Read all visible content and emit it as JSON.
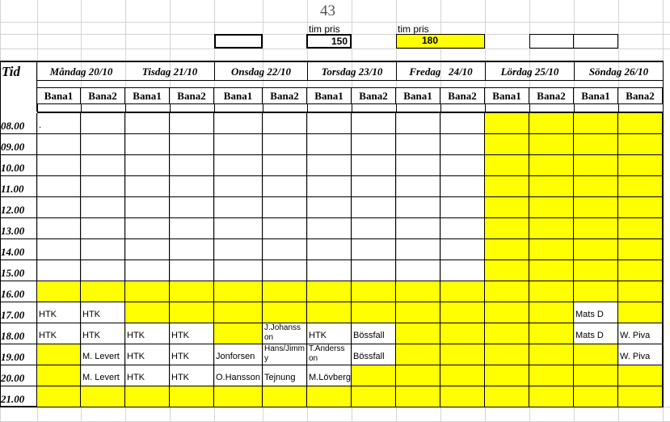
{
  "week_number": "43",
  "price_boxes": [
    {
      "label": "",
      "value": ""
    },
    {
      "label": "tim pris",
      "value": "150"
    },
    {
      "label": "tim pris",
      "value": "180"
    }
  ],
  "header": {
    "time_label": "Tid",
    "days": [
      "Måndag 20/10",
      "Tisdag 21/10",
      "Onsdag 22/10",
      "Torsdag 23/10",
      "Fredag   24/10",
      "Lördag 25/10",
      "Söndag 26/10"
    ],
    "courts": [
      "Bana1",
      "Bana2",
      "Bana1",
      "Bana2",
      "Bana1",
      "Bana2",
      "Bana1",
      "Bana2",
      "Bana1",
      "Bana2",
      "Bana1",
      "Bana2",
      "Bana1",
      "Bana2"
    ]
  },
  "colors": {
    "unavailable": "#ffff00",
    "free": "#ffffff"
  },
  "schedule": [
    {
      "hour": "08.00",
      "cells": [
        ".",
        "",
        "",
        "",
        "",
        "",
        "",
        "",
        "",
        "",
        "#",
        "#",
        "#",
        "#"
      ]
    },
    {
      "hour": "09.00",
      "cells": [
        "",
        "",
        "",
        "",
        "",
        "",
        "",
        "",
        "",
        "",
        "#",
        "#",
        "#",
        "#"
      ]
    },
    {
      "hour": "10.00",
      "cells": [
        "",
        "",
        "",
        "",
        "",
        "",
        "",
        "",
        "",
        "",
        "#",
        "#",
        "#",
        "#"
      ]
    },
    {
      "hour": "11.00",
      "cells": [
        "",
        "",
        "",
        "",
        "",
        "",
        "",
        "",
        "",
        "",
        "#",
        "#",
        "#",
        "#"
      ]
    },
    {
      "hour": "12.00",
      "cells": [
        "",
        "",
        "",
        "",
        "",
        "",
        "",
        "",
        "",
        "",
        "#",
        "#",
        "#",
        "#"
      ]
    },
    {
      "hour": "13.00",
      "cells": [
        "",
        "",
        "",
        "",
        "",
        "",
        "",
        "",
        "",
        "",
        "#",
        "#",
        "#",
        "#"
      ]
    },
    {
      "hour": "14.00",
      "cells": [
        "",
        "",
        "",
        "",
        "",
        "",
        "",
        "",
        "",
        "",
        "#",
        "#",
        "#",
        "#"
      ]
    },
    {
      "hour": "15.00",
      "cells": [
        "",
        "",
        "",
        "",
        "",
        "",
        "",
        "",
        "",
        "",
        "#",
        "#",
        "#",
        "#"
      ]
    },
    {
      "hour": "16.00",
      "cells": [
        "#",
        "#",
        "#",
        "#",
        "#",
        "#",
        "#",
        "#",
        "#",
        "#",
        "#",
        "#",
        "#",
        "#"
      ]
    },
    {
      "hour": "17.00",
      "cells": [
        "HTK",
        "HTK",
        "#",
        "#",
        "#",
        "#",
        "#",
        "#",
        "#",
        "#",
        "#",
        "#",
        "Mats D",
        "#"
      ]
    },
    {
      "hour": "18.00",
      "cells": [
        "HTK",
        "HTK",
        "HTK",
        "HTK",
        "#",
        "J.Johansson",
        "HTK",
        "Bössfall",
        "#",
        "#",
        "#",
        "#",
        "Mats D",
        "W. Piva"
      ]
    },
    {
      "hour": "19.00",
      "cells": [
        "#",
        "M. Levert",
        "HTK",
        "HTK",
        "Jonforsen",
        "Hans/Jimmy",
        "T.Andersson",
        "Bössfall",
        "#",
        "#",
        "#",
        "#",
        "#",
        "W. Piva"
      ]
    },
    {
      "hour": "20.00",
      "cells": [
        "#",
        "M. Levert",
        "HTK",
        "HTK",
        "O.Hansson",
        "Tejnung",
        "M.Lövberg",
        "#",
        "#",
        "#",
        "#",
        "#",
        "#",
        "#"
      ]
    },
    {
      "hour": "21.00",
      "cells": [
        "#",
        "#",
        "#",
        "#",
        "#",
        "#",
        "#",
        "#",
        "#",
        "#",
        "#",
        "#",
        "#",
        "#"
      ]
    }
  ]
}
